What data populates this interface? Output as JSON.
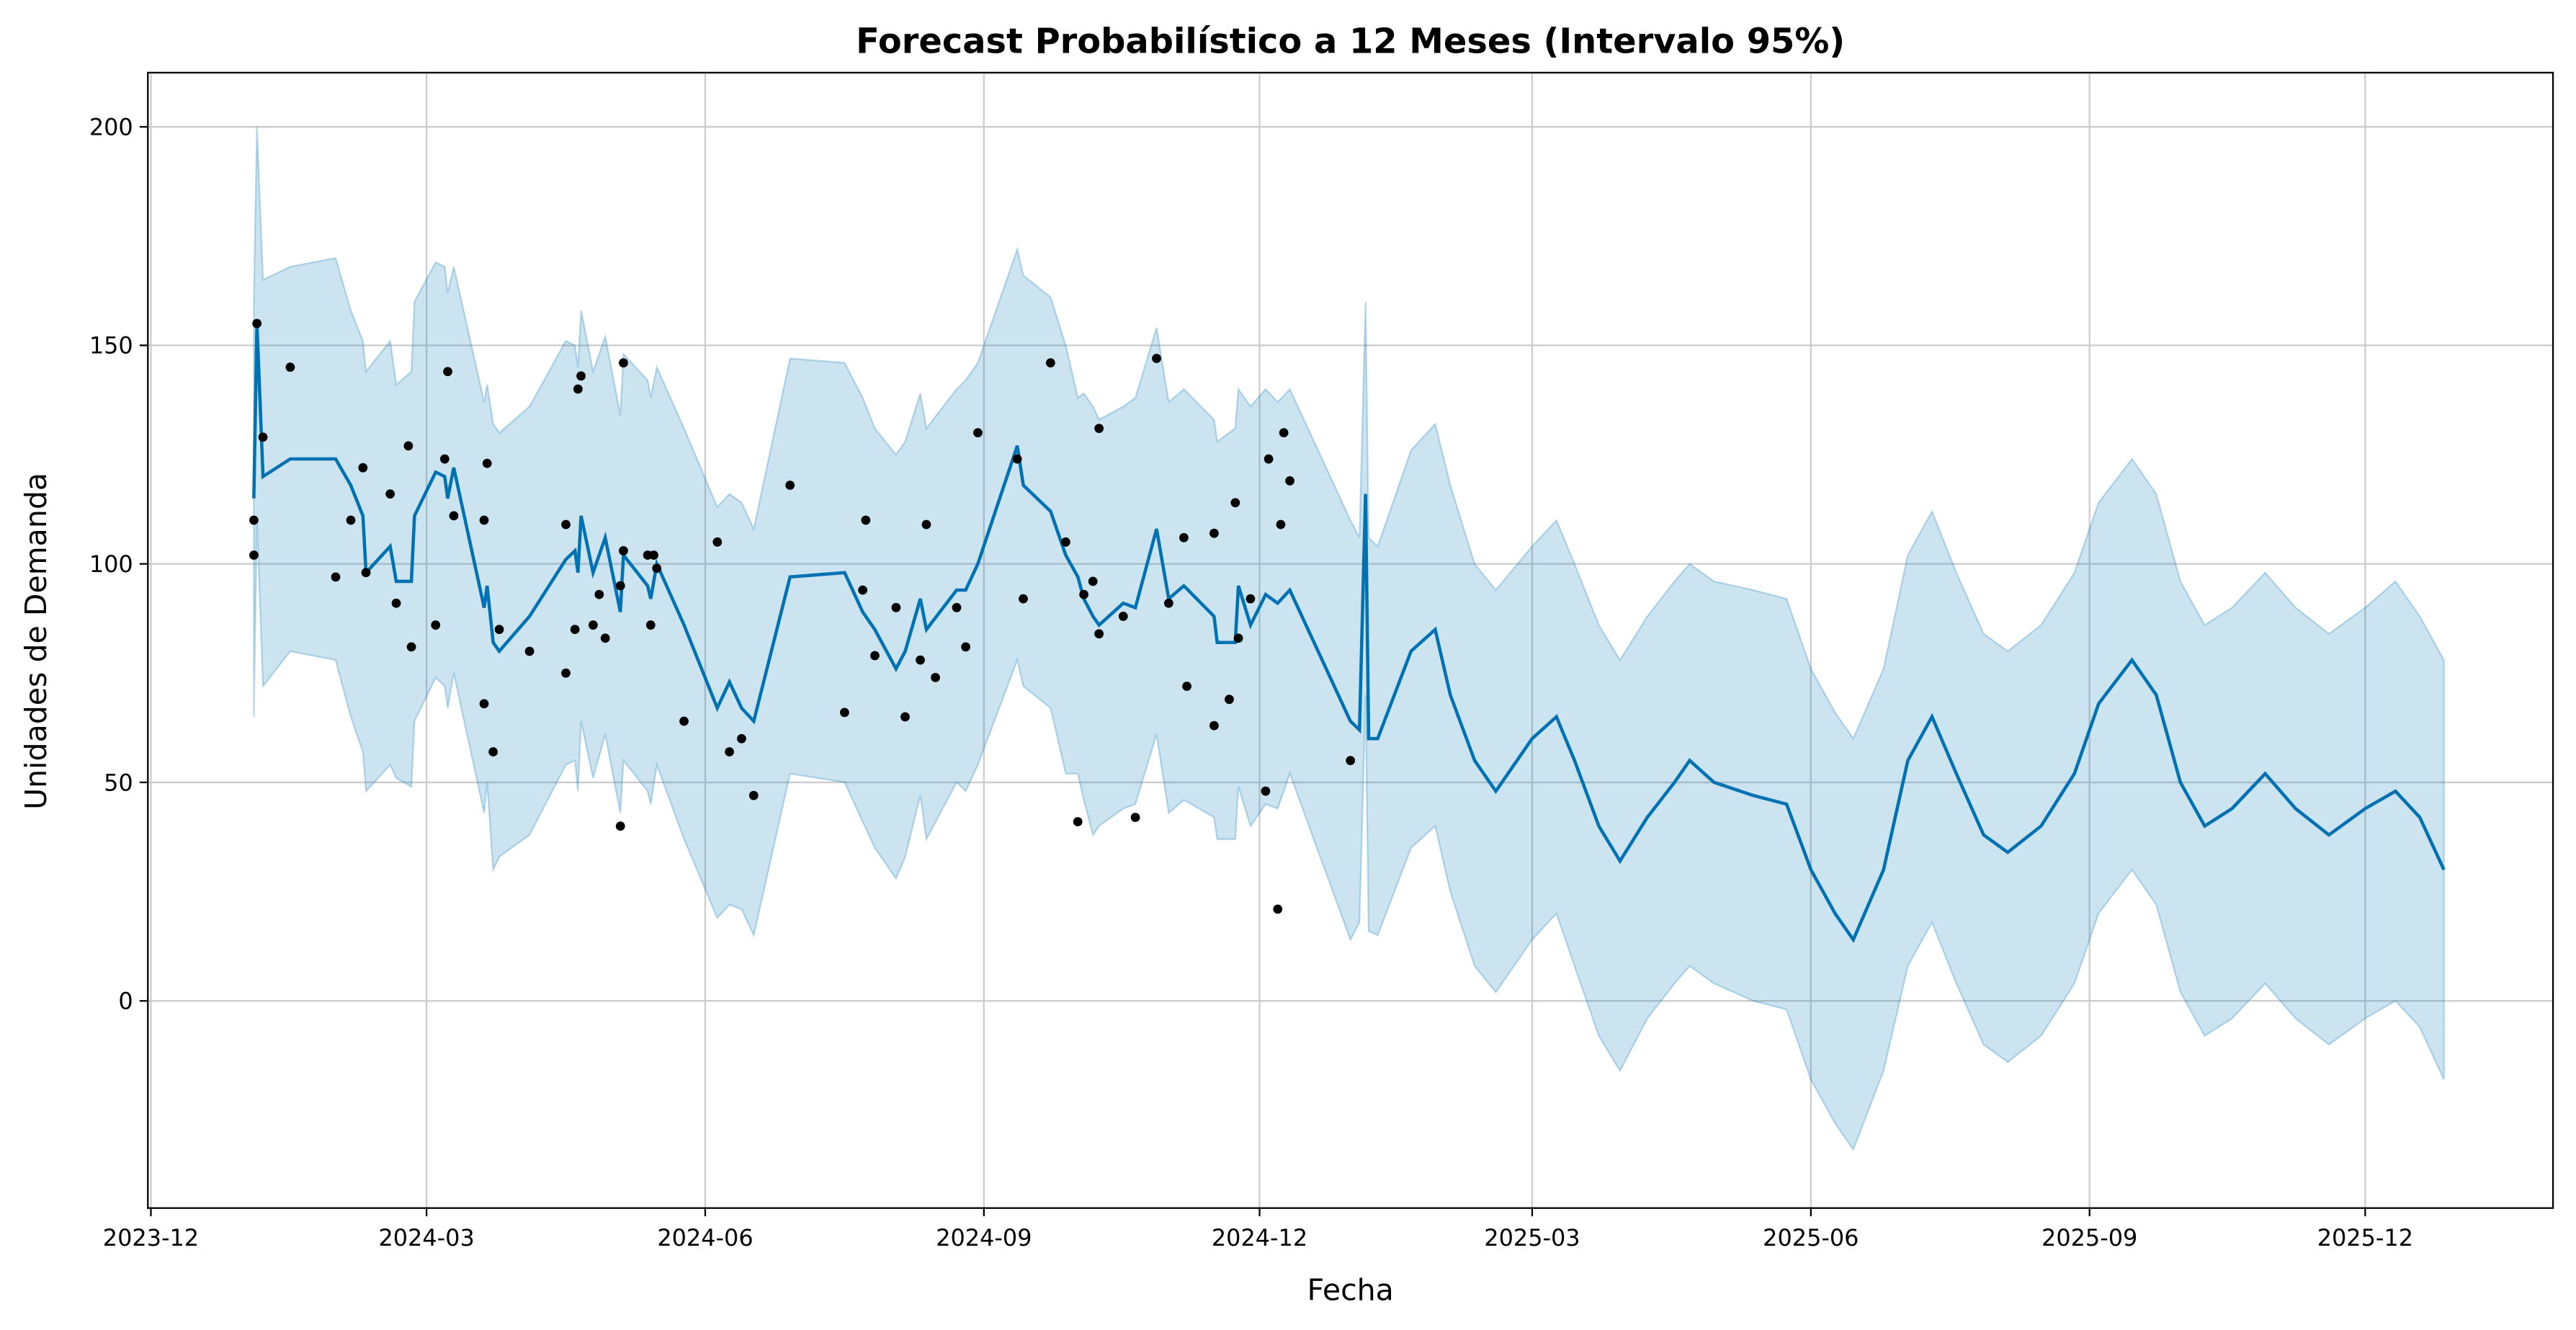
{
  "chart_data": {
    "type": "line",
    "title": "Forecast Probabilístico a 12 Meses (Intervalo 95%)",
    "xlabel": "Fecha",
    "ylabel": "Unidades de Demanda",
    "xlim": [
      "2023-11-30",
      "2026-02-01"
    ],
    "ylim": [
      -47.4,
      212.4
    ],
    "grid": true,
    "legend": "none",
    "colors": {
      "forecast": "#0072B2",
      "interval": "#0072B2",
      "observed": "#000000",
      "grid": "#cccccc"
    },
    "x_ticks": [
      "2023-12",
      "2024-03",
      "2024-06",
      "2024-09",
      "2024-12",
      "2025-03",
      "2025-06",
      "2025-09",
      "2025-12"
    ],
    "y_ticks": [
      0,
      50,
      100,
      150,
      200
    ],
    "forecast": [
      [
        "2024-01-04",
        115,
        65,
        160
      ],
      [
        "2024-01-05",
        155,
        110,
        200
      ],
      [
        "2024-01-07",
        120,
        72,
        165
      ],
      [
        "2024-01-16",
        124,
        80,
        168
      ],
      [
        "2024-01-31",
        124,
        78,
        170
      ],
      [
        "2024-02-05",
        118,
        65,
        158
      ],
      [
        "2024-02-09",
        111,
        57,
        151
      ],
      [
        "2024-02-10",
        98,
        48,
        144
      ],
      [
        "2024-02-18",
        104,
        54,
        151
      ],
      [
        "2024-02-20",
        96,
        51,
        141
      ],
      [
        "2024-02-25",
        96,
        49,
        144
      ],
      [
        "2024-02-26",
        111,
        64,
        160
      ],
      [
        "2024-03-04",
        121,
        74,
        169
      ],
      [
        "2024-03-07",
        120,
        72,
        168
      ],
      [
        "2024-03-08",
        115,
        67,
        162
      ],
      [
        "2024-03-10",
        122,
        75,
        168
      ],
      [
        "2024-03-20",
        90,
        43,
        137
      ],
      [
        "2024-03-21",
        95,
        50,
        141
      ],
      [
        "2024-03-23",
        82,
        30,
        132
      ],
      [
        "2024-03-25",
        80,
        33,
        130
      ],
      [
        "2024-04-04",
        88,
        38,
        136
      ],
      [
        "2024-04-16",
        101,
        54,
        151
      ],
      [
        "2024-04-19",
        103,
        55,
        150
      ],
      [
        "2024-04-20",
        98,
        48,
        145
      ],
      [
        "2024-04-21",
        111,
        64,
        158
      ],
      [
        "2024-04-25",
        98,
        51,
        144
      ],
      [
        "2024-04-29",
        106,
        61,
        152
      ],
      [
        "2024-05-04",
        89,
        43,
        134
      ],
      [
        "2024-05-05",
        102,
        55,
        148
      ],
      [
        "2024-05-13",
        95,
        48,
        142
      ],
      [
        "2024-05-14",
        92,
        45,
        138
      ],
      [
        "2024-05-16",
        100,
        54,
        145
      ],
      [
        "2024-05-25",
        86,
        37,
        131
      ],
      [
        "2024-06-05",
        67,
        19,
        113
      ],
      [
        "2024-06-09",
        73,
        22,
        116
      ],
      [
        "2024-06-13",
        67,
        21,
        114
      ],
      [
        "2024-06-17",
        64,
        15,
        108
      ],
      [
        "2024-06-29",
        97,
        52,
        147
      ],
      [
        "2024-07-17",
        98,
        50,
        146
      ],
      [
        "2024-07-23",
        89,
        41,
        138
      ],
      [
        "2024-07-27",
        85,
        35,
        131
      ],
      [
        "2024-08-03",
        76,
        28,
        125
      ],
      [
        "2024-08-06",
        80,
        33,
        128
      ],
      [
        "2024-08-11",
        92,
        47,
        139
      ],
      [
        "2024-08-13",
        85,
        37,
        131
      ],
      [
        "2024-08-23",
        94,
        50,
        140
      ],
      [
        "2024-08-26",
        94,
        48,
        142
      ],
      [
        "2024-08-30",
        100,
        54,
        146
      ],
      [
        "2024-09-12",
        127,
        78,
        172
      ],
      [
        "2024-09-14",
        118,
        72,
        166
      ],
      [
        "2024-09-23",
        112,
        67,
        161
      ],
      [
        "2024-09-28",
        102,
        52,
        150
      ],
      [
        "2024-10-02",
        97,
        52,
        138
      ],
      [
        "2024-10-04",
        92,
        46,
        139
      ],
      [
        "2024-10-07",
        88,
        38,
        136
      ],
      [
        "2024-10-09",
        86,
        40,
        133
      ],
      [
        "2024-10-17",
        91,
        44,
        136
      ],
      [
        "2024-10-21",
        90,
        45,
        138
      ],
      [
        "2024-10-28",
        108,
        61,
        154
      ],
      [
        "2024-11-01",
        92,
        43,
        137
      ],
      [
        "2024-11-06",
        95,
        46,
        140
      ],
      [
        "2024-11-16",
        88,
        42,
        133
      ],
      [
        "2024-11-17",
        82,
        37,
        128
      ],
      [
        "2024-11-23",
        82,
        37,
        131
      ],
      [
        "2024-11-24",
        95,
        49,
        140
      ],
      [
        "2024-11-28",
        86,
        40,
        136
      ],
      [
        "2024-12-03",
        93,
        45,
        140
      ],
      [
        "2024-12-07",
        91,
        44,
        137
      ],
      [
        "2024-12-11",
        94,
        52,
        140
      ],
      [
        "2024-12-31",
        64,
        14,
        110
      ],
      [
        "2025-01-03",
        62,
        18,
        106
      ],
      [
        "2025-01-05",
        116,
        70,
        160
      ],
      [
        "2025-01-06",
        60,
        16,
        106
      ],
      [
        "2025-01-09",
        60,
        15,
        104
      ],
      [
        "2025-01-20",
        80,
        35,
        126
      ],
      [
        "2025-01-28",
        85,
        40,
        132
      ],
      [
        "2025-02-02",
        70,
        25,
        118
      ],
      [
        "2025-02-10",
        55,
        8,
        100
      ],
      [
        "2025-02-17",
        48,
        2,
        94
      ],
      [
        "2025-03-01",
        60,
        14,
        104
      ],
      [
        "2025-03-09",
        65,
        20,
        110
      ],
      [
        "2025-03-15",
        55,
        8,
        100
      ],
      [
        "2025-03-23",
        40,
        -8,
        86
      ],
      [
        "2025-03-30",
        32,
        -16,
        78
      ],
      [
        "2025-04-08",
        42,
        -4,
        88
      ],
      [
        "2025-04-17",
        50,
        4,
        96
      ],
      [
        "2025-04-22",
        55,
        8,
        100
      ],
      [
        "2025-04-30",
        50,
        4,
        96
      ],
      [
        "2025-05-13",
        47,
        0,
        94
      ],
      [
        "2025-05-24",
        45,
        -2,
        92
      ],
      [
        "2025-06-01",
        30,
        -18,
        76
      ],
      [
        "2025-06-09",
        20,
        -28,
        66
      ],
      [
        "2025-06-15",
        14,
        -34,
        60
      ],
      [
        "2025-06-25",
        30,
        -16,
        76
      ],
      [
        "2025-07-03",
        55,
        8,
        102
      ],
      [
        "2025-07-11",
        65,
        18,
        112
      ],
      [
        "2025-07-19",
        52,
        4,
        98
      ],
      [
        "2025-07-28",
        38,
        -10,
        84
      ],
      [
        "2025-08-05",
        34,
        -14,
        80
      ],
      [
        "2025-08-16",
        40,
        -8,
        86
      ],
      [
        "2025-08-27",
        52,
        4,
        98
      ],
      [
        "2025-09-04",
        68,
        20,
        114
      ],
      [
        "2025-09-15",
        78,
        30,
        124
      ],
      [
        "2025-09-23",
        70,
        22,
        116
      ],
      [
        "2025-10-01",
        50,
        2,
        96
      ],
      [
        "2025-10-09",
        40,
        -8,
        86
      ],
      [
        "2025-10-18",
        44,
        -4,
        90
      ],
      [
        "2025-10-29",
        52,
        4,
        98
      ],
      [
        "2025-11-08",
        44,
        -4,
        90
      ],
      [
        "2025-11-19",
        38,
        -10,
        84
      ],
      [
        "2025-12-01",
        44,
        -4,
        90
      ],
      [
        "2025-12-11",
        48,
        0,
        96
      ],
      [
        "2025-12-19",
        42,
        -6,
        88
      ],
      [
        "2025-12-27",
        30,
        -18,
        78
      ]
    ],
    "observed": [
      [
        "2024-01-04",
        110
      ],
      [
        "2024-01-04",
        102
      ],
      [
        "2024-01-05",
        155
      ],
      [
        "2024-01-07",
        129
      ],
      [
        "2024-01-16",
        145
      ],
      [
        "2024-01-31",
        97
      ],
      [
        "2024-02-05",
        110
      ],
      [
        "2024-02-09",
        122
      ],
      [
        "2024-02-10",
        98
      ],
      [
        "2024-02-18",
        116
      ],
      [
        "2024-02-20",
        91
      ],
      [
        "2024-02-24",
        127
      ],
      [
        "2024-02-25",
        81
      ],
      [
        "2024-03-04",
        86
      ],
      [
        "2024-03-07",
        124
      ],
      [
        "2024-03-08",
        144
      ],
      [
        "2024-03-10",
        111
      ],
      [
        "2024-03-20",
        110
      ],
      [
        "2024-03-21",
        123
      ],
      [
        "2024-03-20",
        68
      ],
      [
        "2024-03-23",
        57
      ],
      [
        "2024-03-25",
        85
      ],
      [
        "2024-04-04",
        80
      ],
      [
        "2024-04-16",
        109
      ],
      [
        "2024-04-16",
        75
      ],
      [
        "2024-04-19",
        85
      ],
      [
        "2024-04-20",
        140
      ],
      [
        "2024-04-21",
        143
      ],
      [
        "2024-04-25",
        86
      ],
      [
        "2024-04-27",
        93
      ],
      [
        "2024-04-29",
        83
      ],
      [
        "2024-05-04",
        95
      ],
      [
        "2024-05-04",
        40
      ],
      [
        "2024-05-05",
        103
      ],
      [
        "2024-05-05",
        146
      ],
      [
        "2024-05-13",
        102
      ],
      [
        "2024-05-14",
        86
      ],
      [
        "2024-05-15",
        102
      ],
      [
        "2024-05-16",
        99
      ],
      [
        "2024-05-25",
        64
      ],
      [
        "2024-06-05",
        105
      ],
      [
        "2024-06-09",
        57
      ],
      [
        "2024-06-13",
        60
      ],
      [
        "2024-06-17",
        47
      ],
      [
        "2024-06-29",
        118
      ],
      [
        "2024-07-17",
        66
      ],
      [
        "2024-07-23",
        94
      ],
      [
        "2024-07-24",
        110
      ],
      [
        "2024-07-27",
        79
      ],
      [
        "2024-08-03",
        90
      ],
      [
        "2024-08-06",
        65
      ],
      [
        "2024-08-11",
        78
      ],
      [
        "2024-08-13",
        109
      ],
      [
        "2024-08-16",
        74
      ],
      [
        "2024-08-23",
        90
      ],
      [
        "2024-08-26",
        81
      ],
      [
        "2024-08-30",
        130
      ],
      [
        "2024-09-12",
        124
      ],
      [
        "2024-09-14",
        92
      ],
      [
        "2024-09-23",
        146
      ],
      [
        "2024-09-28",
        105
      ],
      [
        "2024-10-02",
        41
      ],
      [
        "2024-10-04",
        93
      ],
      [
        "2024-10-07",
        96
      ],
      [
        "2024-10-09",
        131
      ],
      [
        "2024-10-09",
        84
      ],
      [
        "2024-10-17",
        88
      ],
      [
        "2024-10-21",
        42
      ],
      [
        "2024-10-28",
        147
      ],
      [
        "2024-11-01",
        91
      ],
      [
        "2024-11-06",
        106
      ],
      [
        "2024-11-07",
        72
      ],
      [
        "2024-11-16",
        63
      ],
      [
        "2024-11-16",
        107
      ],
      [
        "2024-11-21",
        69
      ],
      [
        "2024-11-23",
        114
      ],
      [
        "2024-11-24",
        83
      ],
      [
        "2024-11-28",
        92
      ],
      [
        "2024-12-03",
        48
      ],
      [
        "2024-12-04",
        124
      ],
      [
        "2024-12-07",
        21
      ],
      [
        "2024-12-08",
        109
      ],
      [
        "2024-12-09",
        130
      ],
      [
        "2024-12-11",
        119
      ],
      [
        "2024-12-31",
        55
      ]
    ]
  }
}
